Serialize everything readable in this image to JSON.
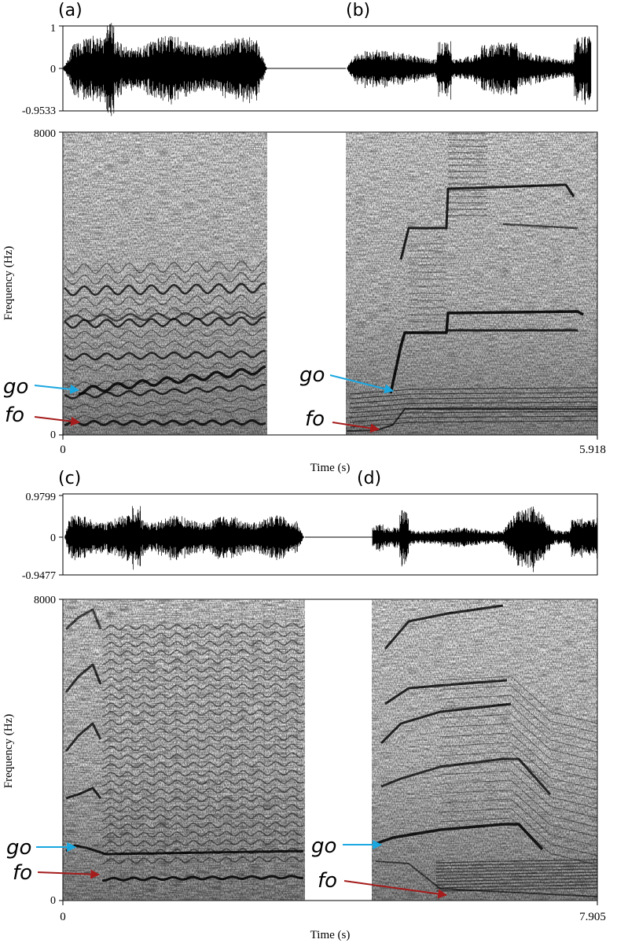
{
  "chart_data": [
    {
      "type": "heatmap",
      "panels": [
        {
          "label": "(a)",
          "x": [
            0,
            2.1
          ],
          "kind": "oscillogram-and-spectrogram"
        },
        {
          "label": "(b)",
          "x": [
            2.95,
            5.918
          ],
          "kind": "oscillogram-and-spectrogram"
        }
      ],
      "waveform": {
        "ytick_labels": [
          "1",
          "0",
          "-0.9533"
        ],
        "ylim": [
          -0.9533,
          1
        ]
      },
      "spectrogram": {
        "ylabel": "Frequency (Hz)",
        "ytick_labels": [
          "8000",
          "0"
        ],
        "ylim": [
          0,
          8000
        ],
        "ridges_a": [
          {
            "name": "fo",
            "x": [
              0.05,
              0.5,
              1.0,
              1.5,
              2.0
            ],
            "y": [
              300,
              310,
              320,
              320,
              320
            ]
          },
          {
            "name": "go",
            "x": [
              0.05,
              0.4,
              0.8,
              1.2,
              1.6,
              2.0
            ],
            "y": [
              1200,
              1700,
              2000,
              1950,
              1850,
              1800
            ]
          }
        ],
        "ridges_b": [
          {
            "name": "fo",
            "x": [
              3.2,
              3.5,
              3.8,
              4.5,
              5.3,
              5.8
            ],
            "y": [
              150,
              300,
              700,
              800,
              900,
              1000
            ]
          },
          {
            "name": "go",
            "x": [
              3.4,
              3.7,
              3.9,
              4.5,
              5.3,
              5.8
            ],
            "y": [
              1050,
              1900,
              2700,
              2700,
              2800,
              2600
            ]
          }
        ]
      },
      "xlabel": "Time (s)",
      "xtick_labels": [
        "0",
        "5.918"
      ],
      "xlim": [
        0,
        5.918
      ],
      "annotations": [
        "go",
        "fo"
      ]
    },
    {
      "type": "heatmap",
      "panels": [
        {
          "label": "(c)",
          "x": [
            0,
            4.05
          ],
          "kind": "oscillogram-and-spectrogram"
        },
        {
          "label": "(d)",
          "x": [
            5.05,
            7.905
          ],
          "kind": "oscillogram-and-spectrogram"
        }
      ],
      "waveform": {
        "ytick_labels": [
          "0.9799",
          "0",
          "-0.9477"
        ],
        "ylim": [
          -0.9477,
          0.9799
        ]
      },
      "spectrogram": {
        "ylabel": "Frequency (Hz)",
        "ytick_labels": [
          "8000",
          "0"
        ],
        "ylim": [
          0,
          8000
        ],
        "ridges_c": [
          {
            "name": "fo",
            "x": [
              0.6,
              1.5,
              2.5,
              3.5,
              4.0
            ],
            "y": [
              530,
              560,
              580,
              600,
              600
            ]
          },
          {
            "name": "go",
            "x": [
              0.1,
              0.4,
              0.6,
              1.5,
              2.5,
              3.5
            ],
            "y": [
              1400,
              1300,
              1250,
              1350,
              1400,
              1450
            ]
          }
        ],
        "ridges_d": [
          {
            "name": "fo",
            "x": [
              5.0,
              6.2,
              6.5,
              7.0,
              7.8
            ],
            "y": [
              200,
              230,
              250,
              260,
              270
            ]
          },
          {
            "name": "go",
            "x": [
              5.1,
              5.4,
              6.0,
              6.7,
              7.0
            ],
            "y": [
              1700,
              1850,
              2050,
              2300,
              2200
            ]
          }
        ]
      },
      "xlabel": "Time (s)",
      "xtick_labels": [
        "0",
        "7.905"
      ],
      "xlim": [
        0,
        7.905
      ],
      "annotations": [
        "go",
        "fo"
      ]
    }
  ],
  "colors": {
    "go_arrow": "#1aa7e0",
    "fo_arrow": "#a51c1c",
    "ink": "#000000"
  }
}
